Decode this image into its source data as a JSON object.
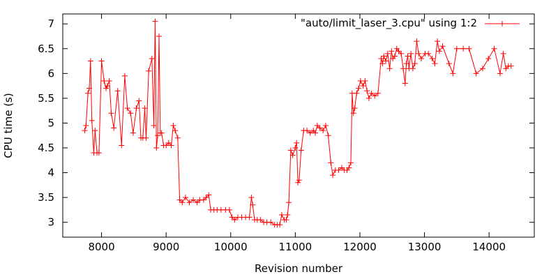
{
  "chart_data": {
    "type": "line",
    "xlabel": "Revision number",
    "ylabel": "CPU time (s)",
    "xlim": [
      7400,
      14700
    ],
    "ylim": [
      2.7,
      7.2
    ],
    "xticks": [
      8000,
      9000,
      10000,
      11000,
      12000,
      13000,
      14000
    ],
    "yticks": [
      3,
      3.5,
      4,
      4.5,
      5,
      5.5,
      6,
      6.5,
      7
    ],
    "ytick_labels": [
      "3",
      "3.5",
      "4",
      "4.5",
      "5",
      "5.5",
      "6",
      "6.5",
      "7"
    ],
    "grid": false,
    "legend_position": "top-right",
    "series": [
      {
        "name": "\"auto/limit_laser_3.cpu\" using 1:2",
        "color": "#ff0000",
        "marker": "plus",
        "x": [
          7740,
          7760,
          7790,
          7810,
          7830,
          7850,
          7880,
          7900,
          7930,
          7960,
          8000,
          8040,
          8070,
          8090,
          8120,
          8150,
          8190,
          8250,
          8310,
          8360,
          8400,
          8450,
          8490,
          8540,
          8580,
          8610,
          8640,
          8670,
          8690,
          8730,
          8780,
          8810,
          8830,
          8850,
          8870,
          8890,
          8910,
          8930,
          8960,
          9000,
          9040,
          9080,
          9110,
          9140,
          9180,
          9210,
          9250,
          9300,
          9360,
          9420,
          9480,
          9520,
          9580,
          9620,
          9660,
          9690,
          9740,
          9790,
          9850,
          9920,
          9980,
          10020,
          10060,
          10110,
          10170,
          10230,
          10290,
          10320,
          10340,
          10370,
          10410,
          10460,
          10510,
          10560,
          10620,
          10680,
          10720,
          10760,
          10790,
          10830,
          10860,
          10880,
          10900,
          10930,
          10960,
          11000,
          11020,
          11040,
          11060,
          11090,
          11130,
          11180,
          11230,
          11280,
          11310,
          11340,
          11380,
          11430,
          11470,
          11510,
          11550,
          11580,
          11620,
          11670,
          11720,
          11760,
          11800,
          11830,
          11860,
          11880,
          11900,
          11920,
          11950,
          11980,
          12010,
          12050,
          12080,
          12110,
          12140,
          12180,
          12230,
          12280,
          12330,
          12350,
          12370,
          12400,
          12430,
          12460,
          12490,
          12510,
          12540,
          12570,
          12600,
          12640,
          12670,
          12700,
          12720,
          12740,
          12760,
          12790,
          12820,
          12850,
          12880,
          12910,
          12950,
          13010,
          13060,
          13120,
          13160,
          13200,
          13230,
          13280,
          13380,
          13440,
          13500,
          13600,
          13690,
          13800,
          13900,
          13990,
          14080,
          14170,
          14220,
          14260,
          14300,
          14340
        ],
        "y": [
          4.85,
          4.95,
          5.6,
          5.7,
          6.25,
          5.05,
          4.4,
          4.85,
          4.4,
          4.4,
          6.25,
          5.85,
          5.7,
          5.75,
          5.85,
          5.2,
          4.9,
          5.65,
          4.55,
          5.95,
          5.3,
          5.2,
          4.8,
          5.3,
          5.45,
          4.7,
          4.7,
          5.3,
          4.7,
          6.05,
          6.3,
          4.95,
          7.05,
          4.5,
          4.75,
          6.75,
          4.8,
          4.8,
          4.55,
          4.55,
          4.6,
          4.55,
          4.95,
          4.85,
          4.7,
          3.45,
          3.4,
          3.5,
          3.4,
          3.45,
          3.4,
          3.45,
          3.45,
          3.5,
          3.55,
          3.25,
          3.25,
          3.25,
          3.25,
          3.25,
          3.25,
          3.1,
          3.05,
          3.1,
          3.1,
          3.1,
          3.1,
          3.5,
          3.35,
          3.05,
          3.05,
          3.05,
          3.0,
          3.0,
          3.0,
          2.95,
          2.95,
          2.95,
          3.15,
          3.05,
          3.05,
          3.15,
          3.4,
          4.45,
          4.35,
          4.5,
          4.6,
          3.8,
          3.85,
          4.45,
          4.85,
          4.85,
          4.8,
          4.85,
          4.8,
          4.95,
          4.9,
          4.85,
          4.95,
          4.75,
          4.2,
          3.95,
          4.05,
          4.05,
          4.1,
          4.05,
          4.05,
          4.1,
          4.2,
          5.6,
          5.2,
          5.3,
          5.6,
          5.7,
          5.85,
          5.75,
          5.85,
          5.65,
          5.5,
          5.6,
          5.55,
          5.6,
          6.3,
          6.2,
          6.35,
          6.25,
          6.4,
          6.1,
          6.45,
          6.3,
          6.35,
          6.5,
          6.45,
          6.4,
          6.1,
          5.8,
          6.2,
          6.35,
          6.1,
          6.4,
          6.1,
          6.2,
          6.65,
          6.4,
          6.3,
          6.4,
          6.4,
          6.3,
          6.2,
          6.65,
          6.45,
          6.55,
          6.2,
          6.0,
          6.5,
          6.5,
          6.5,
          6.0,
          6.1,
          6.3,
          6.5,
          6.0,
          6.4,
          6.1,
          6.15,
          6.15
        ]
      }
    ]
  }
}
